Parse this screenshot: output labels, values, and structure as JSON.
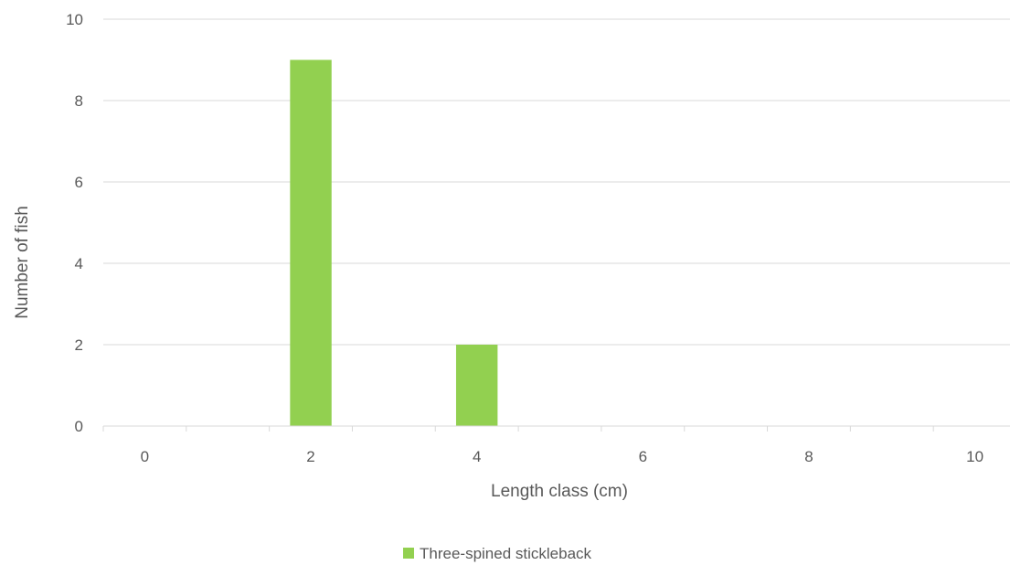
{
  "chart_data": {
    "type": "bar",
    "title": "",
    "xlabel": "Length class (cm)",
    "ylabel": "Number of fish",
    "ylim": [
      0,
      10
    ],
    "yticks": [
      "0",
      "2",
      "4",
      "6",
      "8",
      "10"
    ],
    "x_values": [
      0,
      1,
      2,
      3,
      4,
      5,
      6,
      7,
      8,
      9,
      10
    ],
    "x_tick_labels_shown": [
      "0",
      "2",
      "4",
      "6",
      "8",
      "10"
    ],
    "series": [
      {
        "name": "Three-spined stickleback",
        "color": "#92d050",
        "values": [
          0,
          0,
          9,
          0,
          2,
          0,
          0,
          0,
          0,
          0,
          0
        ]
      }
    ],
    "grid": true,
    "legend_position": "bottom"
  }
}
